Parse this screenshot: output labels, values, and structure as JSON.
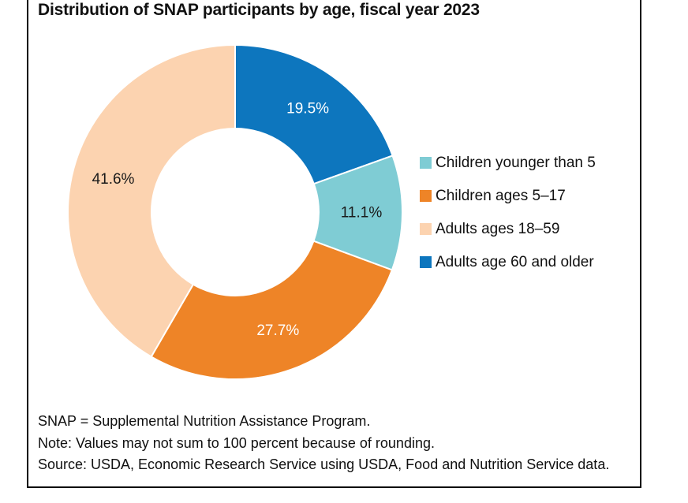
{
  "title": "Distribution of SNAP participants by age, fiscal year 2023",
  "chart_data": {
    "type": "pie",
    "subtype": "donut",
    "title": "Distribution of SNAP participants by age, fiscal year 2023",
    "start_angle_deg": 0,
    "direction": "clockwise",
    "legend_position": "right",
    "inner_radius_ratio": 0.5,
    "segments": [
      {
        "label": "Adults age 60 and older",
        "value": 19.5,
        "display": "19.5%",
        "color": "#0D76BE",
        "value_label_color": "#ffffff"
      },
      {
        "label": "Children younger than 5",
        "value": 11.1,
        "display": "11.1%",
        "color": "#7FCCD4",
        "value_label_color": "#1a1a1a"
      },
      {
        "label": "Children ages 5–17",
        "value": 27.7,
        "display": "27.7%",
        "color": "#EE8427",
        "value_label_color": "#ffffff"
      },
      {
        "label": "Adults ages 18–59",
        "value": 41.6,
        "display": "41.6%",
        "color": "#FCD3B0",
        "value_label_color": "#1a1a1a"
      }
    ]
  },
  "legend": {
    "items": [
      {
        "label": "Children younger than 5",
        "color": "#7FCCD4"
      },
      {
        "label": "Children ages 5–17",
        "color": "#EE8427"
      },
      {
        "label": "Adults ages 18–59",
        "color": "#FCD3B0"
      },
      {
        "label": "Adults age 60 and older",
        "color": "#0D76BE"
      }
    ]
  },
  "footnotes": [
    "SNAP = Supplemental Nutrition Assistance Program.",
    "Note: Values may not sum to 100 percent because of rounding.",
    "Source: USDA, Economic Research Service using USDA, Food and Nutrition Service data."
  ]
}
